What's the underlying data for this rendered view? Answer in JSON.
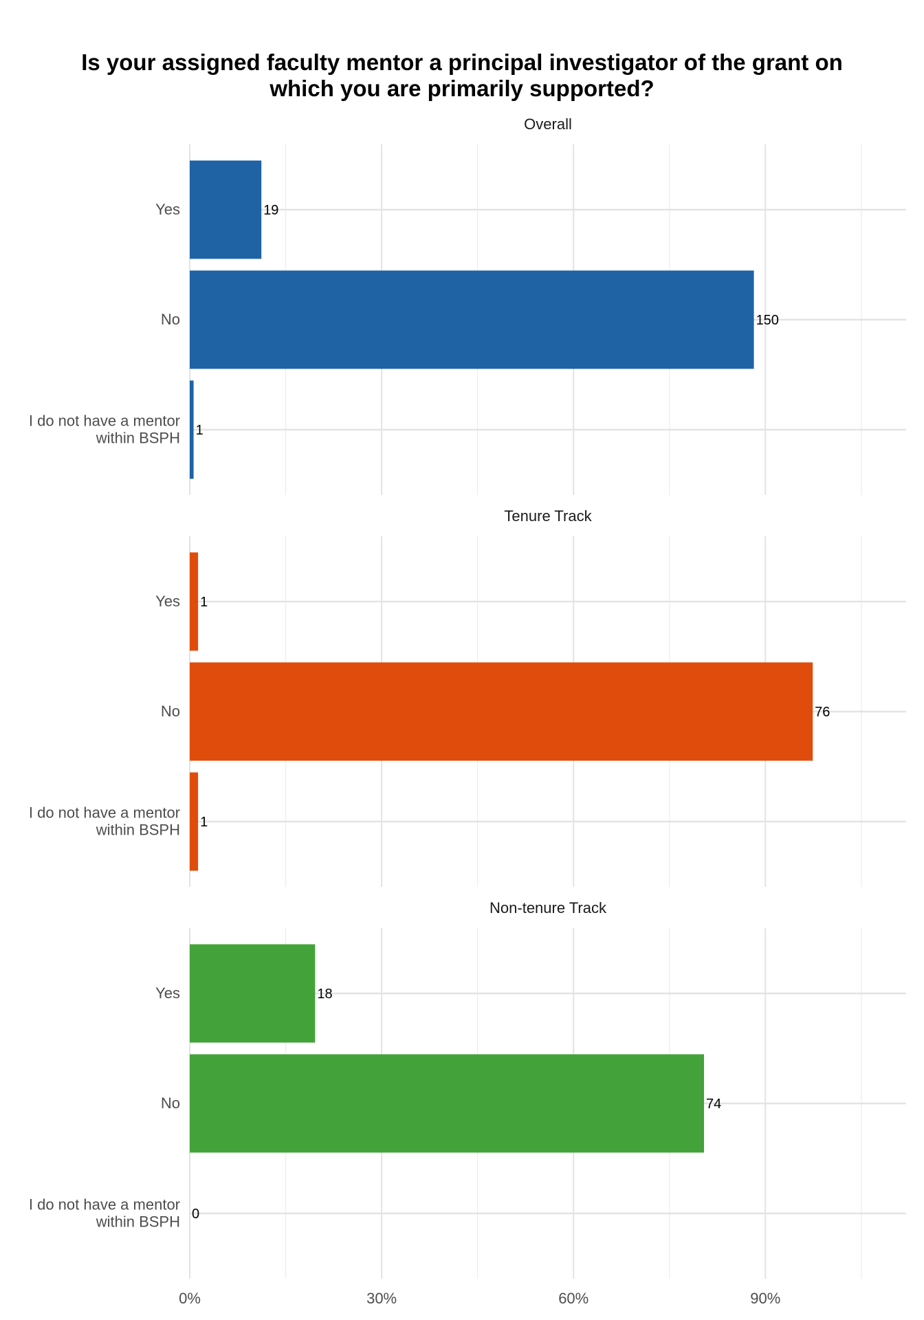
{
  "chart_data": {
    "type": "bar",
    "orientation": "horizontal",
    "title": "Is your assigned faculty mentor a principal investigator of the grant on\nwhich you are primarily supported?",
    "categories": [
      "Yes",
      "No",
      "I do not have a mentor\nwithin BSPH"
    ],
    "x_axis": {
      "ticks": [
        0,
        30,
        60,
        90
      ],
      "tick_labels": [
        "0%",
        "30%",
        "60%",
        "90%"
      ],
      "xlim": [
        0,
        112
      ]
    },
    "grid": true,
    "facets": [
      {
        "name": "Overall",
        "color": "#1f63a5",
        "counts": [
          19,
          150,
          1
        ],
        "percent": [
          11.2,
          88.2,
          0.6
        ]
      },
      {
        "name": "Tenure Track",
        "color": "#df4c0b",
        "counts": [
          1,
          76,
          1
        ],
        "percent": [
          1.3,
          97.4,
          1.3
        ]
      },
      {
        "name": "Non-tenure Track",
        "color": "#43a33a",
        "counts": [
          18,
          74,
          0
        ],
        "percent": [
          19.6,
          80.4,
          0
        ]
      }
    ]
  }
}
